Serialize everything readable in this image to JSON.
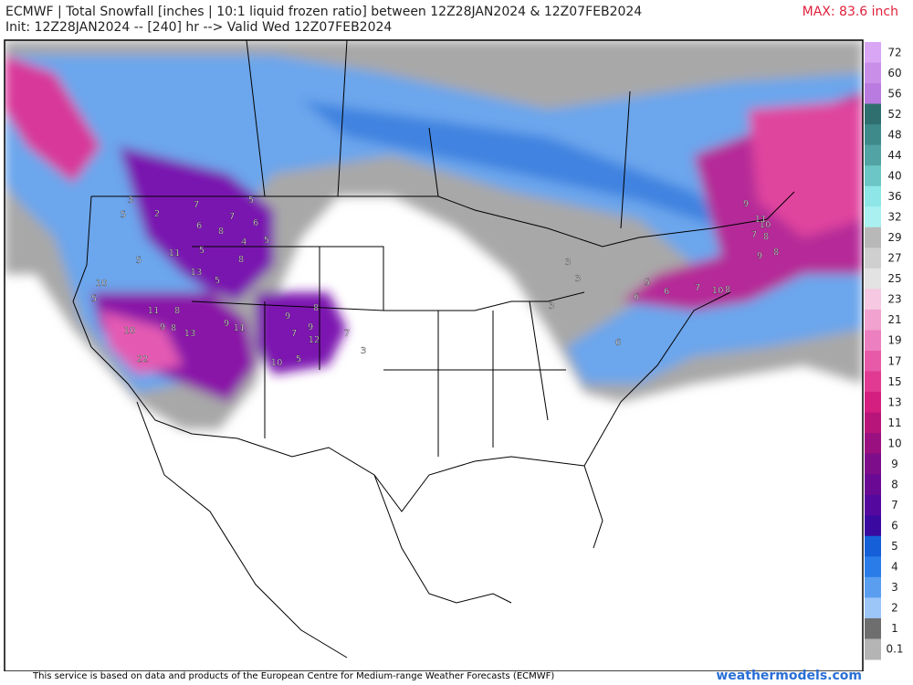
{
  "header": {
    "title": "ECMWF | Total Snowfall [inches | 10:1 liquid frozen ratio] between 12Z28JAN2024 & 12Z07FEB2024",
    "init": "Init: 12Z28JAN2024 -- [240] hr --> Valid Wed 12Z07FEB2024",
    "max": "MAX: 83.6 inch"
  },
  "colorbar": {
    "labels": [
      72,
      60,
      56,
      52,
      48,
      44,
      40,
      36,
      32,
      29,
      27,
      25,
      23,
      21,
      19,
      17,
      15,
      13,
      11,
      10,
      9,
      8,
      7,
      6,
      5,
      4,
      3,
      2,
      1,
      0.1
    ],
    "colors": [
      "#d9a6f5",
      "#c98fe8",
      "#b97be0",
      "#2f6f6f",
      "#3e8a8a",
      "#52a3a3",
      "#6cc6c6",
      "#8ee6e6",
      "#aaf0f0",
      "#b8b8b8",
      "#cfcfcf",
      "#e3e3e3",
      "#f6c8e2",
      "#f1a2cf",
      "#ec7fbf",
      "#e65aa8",
      "#e03a93",
      "#d41f80",
      "#b8157a",
      "#9b1080",
      "#7d0d8a",
      "#6a0a94",
      "#55089e",
      "#3a0aa0",
      "#1560d8",
      "#2a7de8",
      "#5a9ef0",
      "#9cc6f8",
      "#6e6e6e",
      "#b4b4b4"
    ]
  },
  "map": {
    "labels": [
      7,
      7,
      6,
      8,
      5,
      6,
      4,
      5,
      8,
      5,
      11,
      13,
      5,
      11,
      8,
      9,
      8,
      13,
      10,
      22,
      11,
      9,
      9,
      7,
      12,
      9,
      8,
      7,
      3,
      10,
      5,
      3,
      2,
      5,
      5,
      10,
      5,
      3,
      3,
      9,
      11,
      10,
      7,
      8,
      9,
      8,
      7,
      6,
      10,
      8,
      5,
      6,
      3,
      6
    ]
  },
  "footer": {
    "credit": "This service is based on data and products of the European Centre for Medium-range Weather Forecasts (ECMWF)",
    "site": "weathermodels.com"
  }
}
